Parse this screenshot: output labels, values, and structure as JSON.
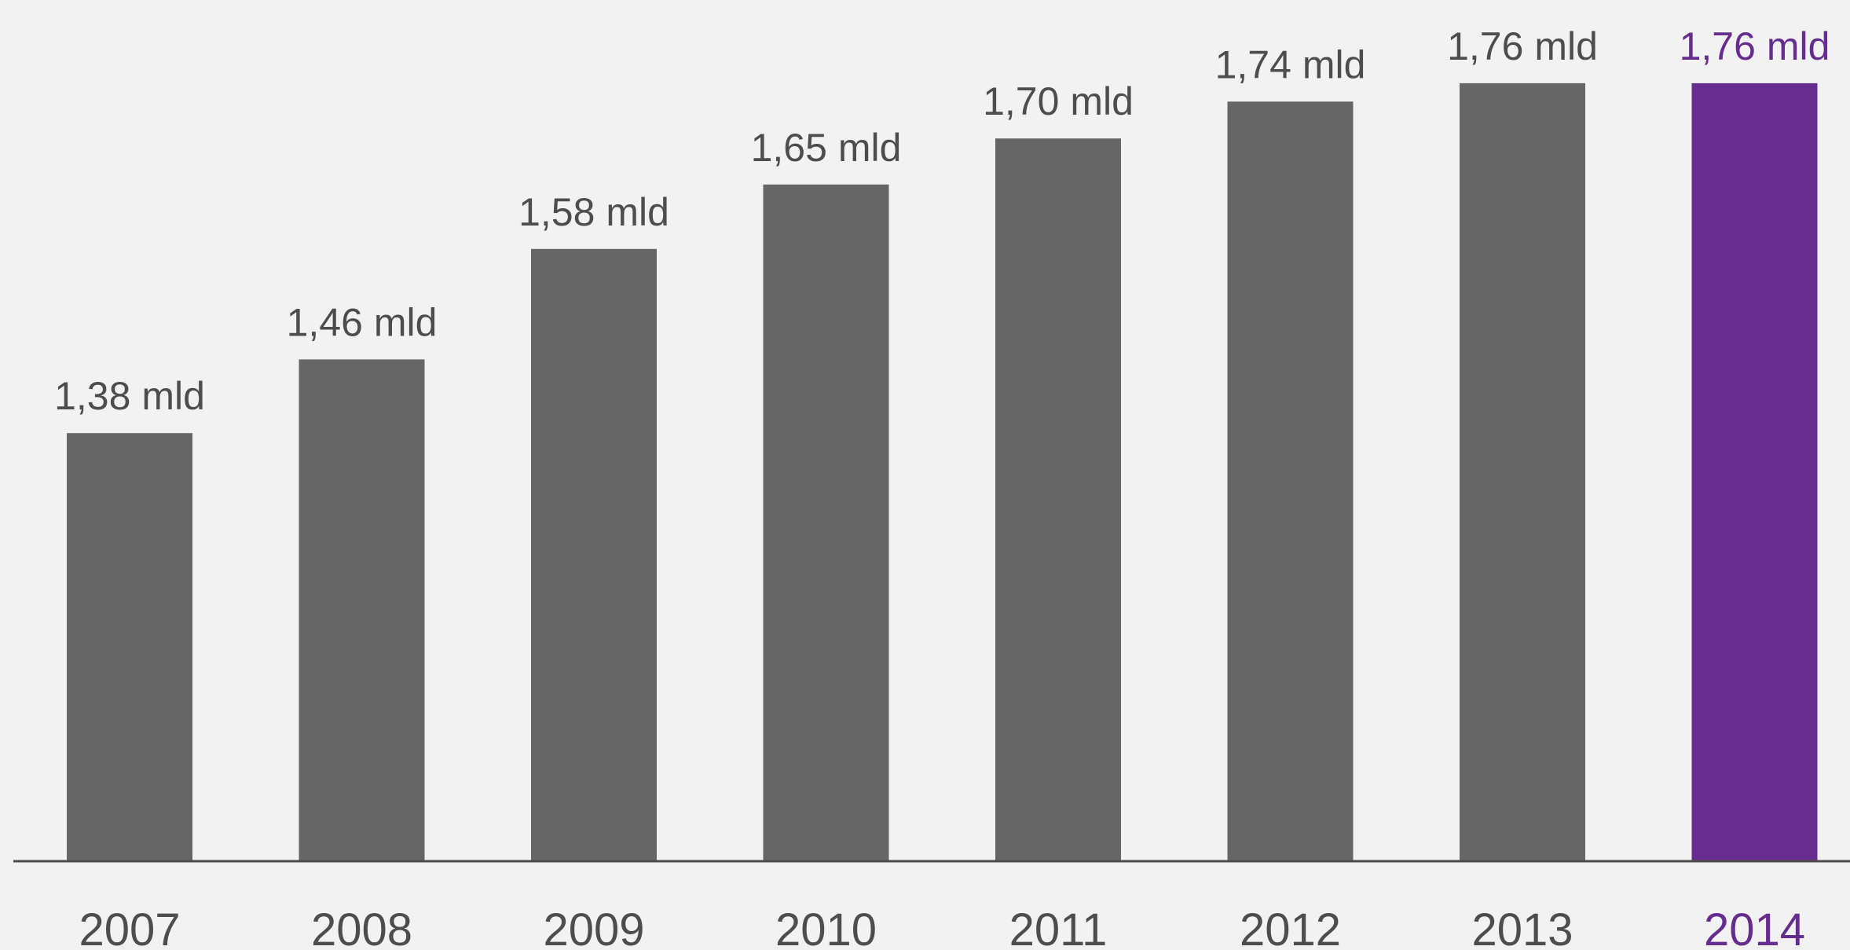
{
  "chart_data": {
    "type": "bar",
    "categories": [
      "2007",
      "2008",
      "2009",
      "2010",
      "2011",
      "2012",
      "2013",
      "2014"
    ],
    "values": [
      1.38,
      1.46,
      1.58,
      1.65,
      1.7,
      1.74,
      1.76,
      1.76
    ],
    "data_labels": [
      "1,38 mld",
      "1,46 mld",
      "1,58 mld",
      "1,65 mld",
      "1,70 mld",
      "1,74 mld",
      "1,76 mld",
      "1,76 mld"
    ],
    "highlight_index": 7,
    "colors": {
      "bar": "#666666",
      "highlight": "#662d8f",
      "text": "#4d4d4d",
      "axis": "#4d4d4d",
      "background": "#f2f2f2"
    },
    "grid": false,
    "legend": "none"
  }
}
